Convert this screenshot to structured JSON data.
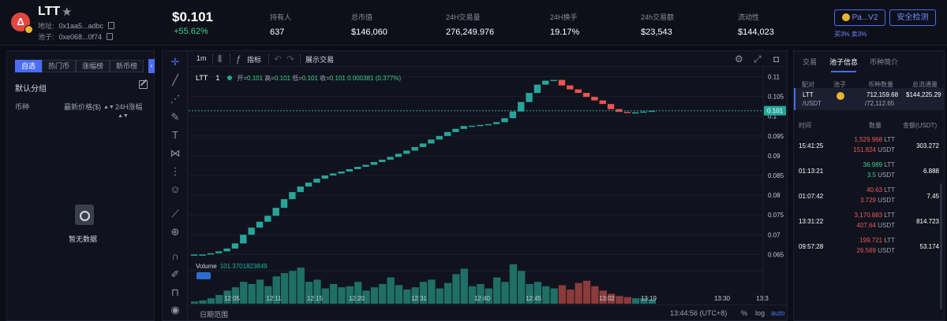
{
  "header": {
    "token_logo_text": "Δ",
    "token_name": "LTT",
    "address_label": "地址:",
    "address_value": "0x1aa5...adbc",
    "pool_label": "池子:",
    "pool_value": "0xe068...0f74",
    "price": "$0.101",
    "change": "+55.62%",
    "stats": [
      {
        "label": "持有人",
        "value": "637"
      },
      {
        "label": "总市值",
        "value": "$146,060"
      },
      {
        "label": "24H交易量",
        "value": "276,249.976"
      },
      {
        "label": "24H换手",
        "value": "19.17%"
      },
      {
        "label": "24h交易额",
        "value": "$23,543"
      },
      {
        "label": "流动性",
        "value": "$144,023"
      }
    ],
    "pair_button": "Pa...V2",
    "security_button": "安全检测",
    "tax_text": "买3% 卖3%"
  },
  "left": {
    "tabs": [
      "自选",
      "热门币",
      "涨幅榜",
      "新币榜"
    ],
    "group_title": "默认分组",
    "col_coin": "币种",
    "col_price": "最新价格($)",
    "col_change": "24H涨幅",
    "empty_text": "暂无数据"
  },
  "chart": {
    "toolbar": {
      "interval": "1m",
      "indicators": "指标",
      "trade": "展示交易"
    },
    "legend": {
      "symbol": "LTT",
      "interval": "1",
      "open_label": "开=",
      "open": "0.101",
      "high_label": "高=",
      "high": "0.101",
      "low_label": "低=",
      "low": "0.101",
      "close_label": "收=",
      "close": "0.101",
      "change": "0.000381 (0.377%)"
    },
    "volume_label": "Volume",
    "volume_value": "101.3701823849",
    "last_price_tag": "0.101",
    "date_range": "日期范围",
    "clock": "13:44:56 (UTC+8)",
    "pct": "%",
    "log": "log",
    "auto": "auto",
    "colors": {
      "up": "#26a69a",
      "down": "#ef5350"
    }
  },
  "chart_data": {
    "type": "candlestick",
    "title": "",
    "x_ticks": [
      "12:05",
      "12:11",
      "12:15",
      "12:20",
      "12:31",
      "12:40",
      "12:45",
      "13:02",
      "13:19",
      "13:30",
      "13:3"
    ],
    "y_ticks": [
      "0.11",
      "0.105",
      "0.1",
      "0.095",
      "0.09",
      "0.085",
      "0.08",
      "0.075",
      "0.07",
      "0.065"
    ],
    "ylim": [
      0.0625,
      0.1115
    ],
    "candles": [
      [
        0.0647,
        0.065
      ],
      [
        0.065,
        0.065
      ],
      [
        0.065,
        0.0653
      ],
      [
        0.0653,
        0.0658
      ],
      [
        0.0658,
        0.0665
      ],
      [
        0.0665,
        0.0678
      ],
      [
        0.0678,
        0.07
      ],
      [
        0.07,
        0.0718
      ],
      [
        0.0718,
        0.0733
      ],
      [
        0.0733,
        0.0748
      ],
      [
        0.0748,
        0.0768
      ],
      [
        0.0768,
        0.079
      ],
      [
        0.079,
        0.0808
      ],
      [
        0.0808,
        0.0822
      ],
      [
        0.0822,
        0.0832
      ],
      [
        0.0832,
        0.0842
      ],
      [
        0.0842,
        0.085
      ],
      [
        0.085,
        0.0855
      ],
      [
        0.0855,
        0.086
      ],
      [
        0.086,
        0.0866
      ],
      [
        0.0866,
        0.0872
      ],
      [
        0.0872,
        0.0877
      ],
      [
        0.0877,
        0.0884
      ],
      [
        0.0884,
        0.089
      ],
      [
        0.089,
        0.0897
      ],
      [
        0.0897,
        0.0905
      ],
      [
        0.0905,
        0.0913
      ],
      [
        0.0913,
        0.0922
      ],
      [
        0.0922,
        0.0931
      ],
      [
        0.0931,
        0.0941
      ],
      [
        0.0941,
        0.095
      ],
      [
        0.095,
        0.096
      ],
      [
        0.096,
        0.0968
      ],
      [
        0.0968,
        0.0975
      ],
      [
        0.0975,
        0.0976
      ],
      [
        0.0976,
        0.0978
      ],
      [
        0.0978,
        0.098
      ],
      [
        0.098,
        0.0985
      ],
      [
        0.0985,
        0.0995
      ],
      [
        0.0995,
        0.1012
      ],
      [
        0.1012,
        0.1036
      ],
      [
        0.1036,
        0.1059
      ],
      [
        0.1059,
        0.108
      ],
      [
        0.108,
        0.109
      ],
      [
        0.109,
        0.1092
      ],
      [
        0.1092,
        0.1078
      ],
      [
        0.1078,
        0.1068
      ],
      [
        0.1068,
        0.1059
      ],
      [
        0.1059,
        0.1049
      ],
      [
        0.1049,
        0.104
      ],
      [
        0.104,
        0.1031
      ],
      [
        0.1031,
        0.1018
      ],
      [
        0.1018,
        0.1011
      ],
      [
        0.1011,
        0.1008
      ],
      [
        0.1008,
        0.101
      ],
      [
        0.101,
        0.1012
      ],
      [
        0.1012,
        0.1014
      ]
    ],
    "volumes": [
      0.2,
      0.3,
      0.5,
      0.8,
      1.2,
      1.5,
      2.0,
      1.8,
      2.2,
      1.6,
      2.5,
      2.8,
      3.0,
      3.3,
      2.0,
      2.2,
      1.4,
      1.8,
      1.5,
      1.6,
      2.0,
      1.2,
      1.5,
      1.8,
      2.4,
      1.7,
      1.3,
      1.5,
      2.0,
      2.2,
      1.4,
      1.9,
      2.7,
      3.2,
      1.6,
      1.8,
      1.4,
      2.4,
      2.0,
      3.6,
      3.0,
      1.8,
      2.0,
      1.6,
      1.4,
      1.7,
      1.3,
      1.9,
      2.1,
      1.6,
      1.2,
      0.9,
      0.7,
      0.6,
      0.5,
      0.5,
      0.4
    ]
  },
  "right": {
    "tabs": [
      "交易",
      "池子信息",
      "币种简介"
    ],
    "pool_headers": [
      "配对",
      "池子",
      "币种数量",
      "总流通量"
    ],
    "pool_row": {
      "pair": "LTT",
      "quote": "/USDT",
      "qty1": "712,159.68",
      "qty2": "/72,112.65",
      "liquidity": "$144,225.29"
    },
    "tx_headers": [
      "时间",
      "数量",
      "金额(USDT)"
    ],
    "transactions": [
      {
        "time": "15:41:25",
        "a1": "1,529.968",
        "u1": "LTT",
        "a2": "151.824",
        "u2": "USDT",
        "side": "sell",
        "amount": "303.272"
      },
      {
        "time": "01:13:21",
        "a1": "36.989",
        "u1": "LTT",
        "a2": "3.5",
        "u2": "USDT",
        "side": "buy",
        "amount": "6.888"
      },
      {
        "time": "01:07:42",
        "a1": "40.63",
        "u1": "LTT",
        "a2": "3.729",
        "u2": "USDT",
        "side": "sell",
        "amount": "7.45"
      },
      {
        "time": "13:31:22",
        "a1": "3,170.883",
        "u1": "LTT",
        "a2": "407.64",
        "u2": "USDT",
        "side": "sell",
        "amount": "814.723"
      },
      {
        "time": "09:57:28",
        "a1": "199.721",
        "u1": "LTT",
        "a2": "26.569",
        "u2": "USDT",
        "side": "sell",
        "amount": "53.174"
      }
    ]
  }
}
